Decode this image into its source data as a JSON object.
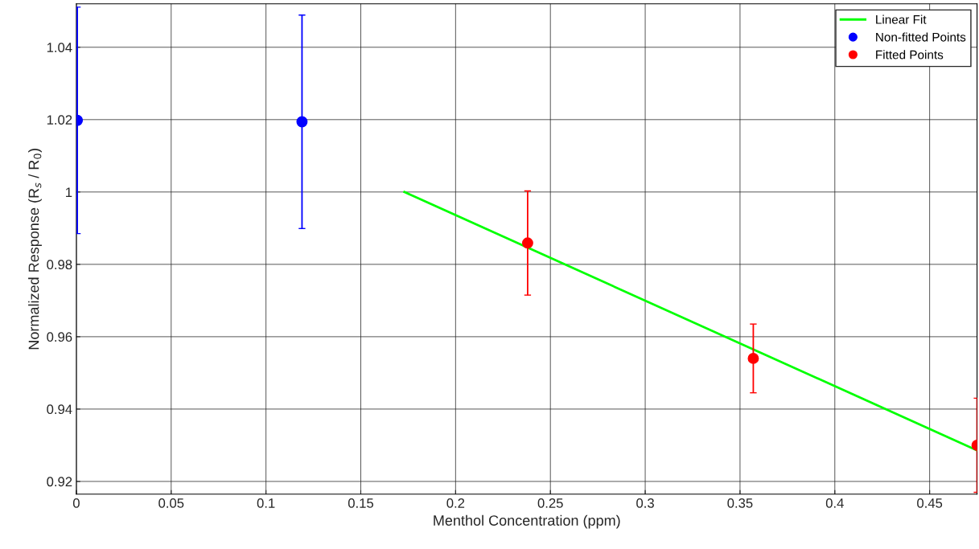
{
  "chart_data": {
    "type": "scatter",
    "xlabel": "Menthol Concentration (ppm)",
    "ylabel": "Normalized Response (R$_{s}$ / R$_{0}$)",
    "xlim": [
      0,
      0.475
    ],
    "xticks": [
      0,
      0.05,
      0.1,
      0.15,
      0.2,
      0.25,
      0.3,
      0.35,
      0.4,
      0.45
    ],
    "ylim": [
      0.9165,
      1.052
    ],
    "yticks": [
      0.92,
      0.94,
      0.96,
      0.98,
      1,
      1.02,
      1.04
    ],
    "grid": true,
    "legend": "top right",
    "series": [
      {
        "name": "Linear Fit",
        "type": "line",
        "marker": "none",
        "color": "#00ff00",
        "x": [
          0.173,
          0.475
        ],
        "values": [
          1.0,
          0.9286
        ]
      },
      {
        "name": "Non-fitted Points",
        "marker": "circle",
        "color": "#0000ff",
        "x": [
          0.0005,
          0.119
        ],
        "values": [
          1.0198,
          1.0194
        ],
        "errors": [
          0.0313,
          0.0295
        ]
      },
      {
        "name": "Fitted Points",
        "marker": "circle",
        "color": "#ff0000",
        "x": [
          0.238,
          0.357,
          0.475
        ],
        "values": [
          0.9859,
          0.954,
          0.93
        ],
        "errors": [
          0.0144,
          0.0095,
          0.013
        ]
      }
    ]
  }
}
